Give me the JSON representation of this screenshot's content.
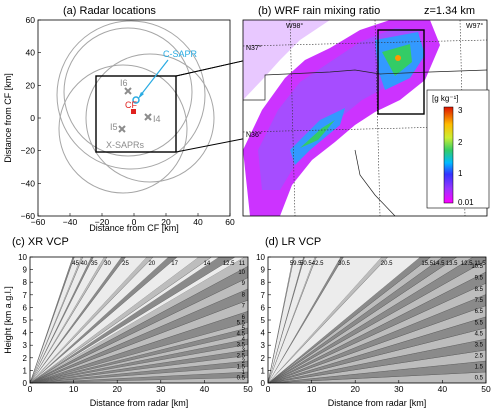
{
  "panel_a": {
    "title": "(a) Radar locations",
    "xlabel": "Distance from CF [km]",
    "ylabel": "Distance from CF [km]",
    "xticks": [
      "−60",
      "−40",
      "−20",
      "0",
      "20",
      "40",
      "60"
    ],
    "yticks": [
      "60",
      "40",
      "20",
      "0",
      "−20",
      "−40",
      "−60"
    ],
    "labels": {
      "csapr": "C-SAPR",
      "cf": "CF",
      "i4": "I4",
      "i5": "I5",
      "i6": "I6",
      "xsaprs": "X-SAPRs"
    },
    "colors": {
      "csapr": "#29abe2",
      "cf": "#e0211f",
      "x": "#8c8c8c",
      "circle": "#a6a6a6"
    }
  },
  "panel_b": {
    "title": "(b) WRF rain mixing ratio",
    "altitude": "z=1.34 km",
    "lon_labels": [
      "W98°",
      "W97°"
    ],
    "lat_labels": [
      "N37°",
      "N36°"
    ],
    "colorbar": {
      "unit": "[g kg⁻¹]",
      "ticks": [
        "3",
        "2",
        "1",
        "0.01"
      ]
    }
  },
  "panel_c": {
    "title": "(c) XR VCP",
    "xlabel": "Distance from radar [km]",
    "ylabel": "Height [km a.g.l.]",
    "xticks": [
      "0",
      "10",
      "20",
      "30",
      "40",
      "50"
    ],
    "yticks": [
      "0",
      "1",
      "2",
      "3",
      "4",
      "5",
      "6",
      "7",
      "8",
      "9",
      "10"
    ],
    "top_labels": [
      "45",
      "40",
      "35",
      "30",
      "25",
      "20",
      "17",
      "14",
      "12.5",
      "11"
    ],
    "right_labels": [
      "10",
      "9",
      "8",
      "7",
      "6",
      "5.5",
      "5",
      "4.5",
      "4",
      "3.5",
      "3",
      "2.5",
      "2",
      "1.5",
      "1",
      "0.5"
    ]
  },
  "panel_d": {
    "title": "(d) LR VCP",
    "xlabel": "Distance from radar [km]",
    "xticks": [
      "0",
      "10",
      "20",
      "30",
      "40",
      "50"
    ],
    "yticks": [
      "0",
      "1",
      "2",
      "3",
      "4",
      "5",
      "6",
      "7",
      "8",
      "9",
      "10"
    ],
    "top_labels": [
      "59.5",
      "50.5",
      "42.5",
      "30.5",
      "20.5",
      "15.5",
      "14.5",
      "13.5",
      "12.5",
      "11.5"
    ],
    "right_labels": [
      "10.5",
      "9.5",
      "8.5",
      "7.5",
      "6.5",
      "5.5",
      "4.5",
      "3.5",
      "2.5",
      "1.5",
      "0.5"
    ]
  }
}
